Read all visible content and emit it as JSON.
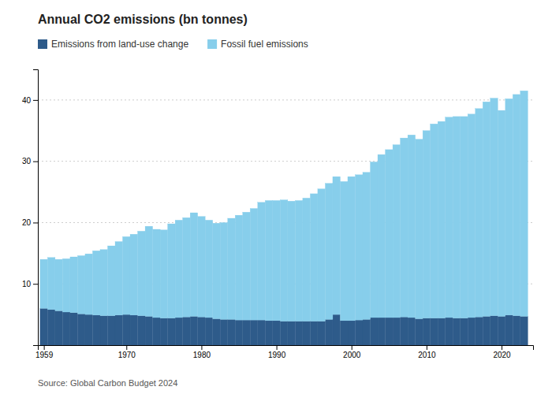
{
  "chart_data": {
    "type": "bar",
    "stacked": true,
    "title": "Annual CO2 emissions (bn tonnes)",
    "annotations": [
      "Source: Global Carbon Budget 2024"
    ],
    "x": [
      1959,
      1960,
      1961,
      1962,
      1963,
      1964,
      1965,
      1966,
      1967,
      1968,
      1969,
      1970,
      1971,
      1972,
      1973,
      1974,
      1975,
      1976,
      1977,
      1978,
      1979,
      1980,
      1981,
      1982,
      1983,
      1984,
      1985,
      1986,
      1987,
      1988,
      1989,
      1990,
      1991,
      1992,
      1993,
      1994,
      1995,
      1996,
      1997,
      1998,
      1999,
      2000,
      2001,
      2002,
      2003,
      2004,
      2005,
      2006,
      2007,
      2008,
      2009,
      2010,
      2011,
      2012,
      2013,
      2014,
      2015,
      2016,
      2017,
      2018,
      2019,
      2020,
      2021,
      2022,
      2023
    ],
    "xlim": [
      1958.2,
      2024.2
    ],
    "xticks": [
      1959,
      1970,
      1980,
      1990,
      2000,
      2010,
      2020
    ],
    "ylim": [
      0,
      45
    ],
    "yticks": [
      10,
      20,
      30,
      40
    ],
    "grid": true,
    "legend": "top-left",
    "series": [
      {
        "name": "Emissions from land-use change",
        "color": "#2e5b8a",
        "values": [
          6.0,
          5.8,
          5.6,
          5.4,
          5.3,
          5.1,
          5.0,
          4.9,
          4.8,
          4.8,
          4.9,
          5.0,
          4.9,
          4.8,
          4.7,
          4.5,
          4.4,
          4.4,
          4.5,
          4.6,
          4.7,
          4.6,
          4.5,
          4.3,
          4.2,
          4.2,
          4.1,
          4.1,
          4.1,
          4.1,
          4.0,
          4.0,
          3.9,
          3.9,
          3.9,
          3.9,
          3.9,
          3.9,
          4.2,
          5.0,
          4.0,
          4.0,
          4.1,
          4.2,
          4.5,
          4.5,
          4.5,
          4.5,
          4.6,
          4.5,
          4.3,
          4.4,
          4.4,
          4.4,
          4.5,
          4.4,
          4.4,
          4.5,
          4.6,
          4.7,
          4.8,
          4.7,
          4.9,
          4.8,
          4.7
        ]
      },
      {
        "name": "Fossil fuel emissions",
        "color": "#87ceeb",
        "values": [
          8.0,
          8.5,
          8.4,
          8.7,
          9.1,
          9.5,
          9.9,
          10.5,
          10.8,
          11.4,
          12.0,
          12.7,
          13.2,
          13.8,
          14.7,
          14.4,
          14.4,
          15.4,
          15.9,
          16.2,
          16.9,
          16.4,
          15.9,
          15.6,
          15.8,
          16.5,
          17.1,
          17.6,
          18.2,
          19.2,
          19.6,
          19.6,
          19.8,
          19.6,
          19.7,
          20.1,
          20.8,
          21.6,
          22.2,
          22.5,
          22.7,
          23.5,
          23.7,
          24.0,
          25.4,
          26.6,
          27.4,
          28.2,
          29.2,
          29.8,
          29.3,
          30.6,
          31.7,
          32.1,
          32.7,
          32.9,
          32.9,
          33.2,
          34.0,
          35.0,
          35.5,
          33.6,
          35.3,
          36.1,
          36.8
        ]
      }
    ]
  }
}
